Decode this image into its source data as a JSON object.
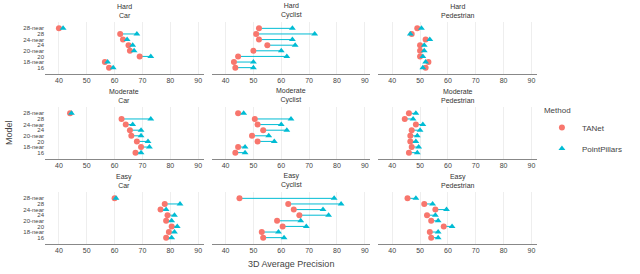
{
  "chart_data": [
    {
      "type": "dumbbell",
      "title": "Hard",
      "subtitle": "Car",
      "categories": [
        "28-near",
        "28",
        "24-near",
        "24",
        "20-near",
        "20",
        "18-near",
        "16"
      ],
      "series": [
        {
          "name": "TANet",
          "color": "#F8766D",
          "marker": "circle",
          "values": [
            40.0,
            62.0,
            63.0,
            65.0,
            65.5,
            69.0,
            56.5,
            58.0
          ]
        },
        {
          "name": "PointPillars",
          "color": "#00BCD4",
          "marker": "triangle-up",
          "values": [
            41.5,
            68.0,
            64.5,
            66.5,
            67.0,
            73.0,
            57.5,
            59.5
          ]
        }
      ],
      "xlim": [
        35,
        92
      ],
      "xticks": [
        40,
        50,
        60,
        70,
        80,
        90
      ],
      "grid": true,
      "legend": "right",
      "legend_title": "Method"
    },
    {
      "type": "dumbbell",
      "title": "Hard",
      "subtitle": "Cyclist",
      "categories": [
        "28-near",
        "28",
        "24-near",
        "24",
        "20-near",
        "20",
        "18-near",
        "16"
      ],
      "series": [
        {
          "name": "TANet",
          "color": "#F8766D",
          "marker": "circle",
          "values": [
            52.0,
            51.0,
            52.0,
            55.0,
            50.0,
            44.5,
            43.0,
            43.5
          ]
        },
        {
          "name": "PointPillars",
          "color": "#00BCD4",
          "marker": "triangle-up",
          "values": [
            64.0,
            72.0,
            64.0,
            65.0,
            60.0,
            62.0,
            50.0,
            50.0
          ]
        }
      ],
      "xlim": [
        35,
        92
      ],
      "xticks": [
        40,
        50,
        60,
        70,
        80,
        90
      ],
      "grid": true,
      "tick_labels": "x"
    },
    {
      "type": "dumbbell",
      "title": "Hard",
      "subtitle": "Pedestrian",
      "categories": [
        "28-near",
        "28",
        "24-near",
        "24",
        "20-near",
        "20",
        "18-near",
        "16"
      ],
      "series": [
        {
          "name": "TANet",
          "color": "#F8766D",
          "marker": "circle",
          "values": [
            49.0,
            47.0,
            52.0,
            50.0,
            50.0,
            50.0,
            53.0,
            52.0
          ]
        },
        {
          "name": "PointPillars",
          "color": "#00BCD4",
          "marker": "triangle-up",
          "values": [
            50.5,
            46.5,
            53.5,
            51.5,
            51.5,
            51.0,
            52.0,
            51.0
          ]
        }
      ],
      "xlim": [
        35,
        92
      ],
      "xticks": [
        40,
        50,
        60,
        70,
        80,
        90
      ],
      "grid": true,
      "tick_labels": "x"
    },
    {
      "type": "dumbbell",
      "title": "Moderate",
      "subtitle": "Car",
      "ylabel": "Model",
      "categories": [
        "28-near",
        "28",
        "24-near",
        "24",
        "20-near",
        "20",
        "18-near",
        "16"
      ],
      "series": [
        {
          "name": "TANet",
          "color": "#F8766D",
          "marker": "circle",
          "values": [
            44.0,
            62.5,
            64.0,
            65.5,
            66.0,
            68.0,
            69.5,
            67.5
          ]
        },
        {
          "name": "PointPillars",
          "color": "#00BCD4",
          "marker": "triangle-up",
          "values": [
            44.5,
            73.0,
            66.5,
            69.5,
            69.5,
            72.0,
            72.5,
            69.5
          ]
        }
      ],
      "xlim": [
        35,
        92
      ],
      "xticks": [
        40,
        50,
        60,
        70,
        80,
        90
      ],
      "grid": true
    },
    {
      "type": "dumbbell",
      "title": "Moderate",
      "subtitle": "Cyclist",
      "categories": [
        "28-near",
        "28",
        "24-near",
        "24",
        "20-near",
        "20",
        "18-near",
        "16"
      ],
      "series": [
        {
          "name": "TANet",
          "color": "#F8766D",
          "marker": "circle",
          "values": [
            44.5,
            50.5,
            51.5,
            53.5,
            49.5,
            51.5,
            44.5,
            43.5
          ]
        },
        {
          "name": "PointPillars",
          "color": "#00BCD4",
          "marker": "triangle-up",
          "values": [
            46.5,
            63.5,
            60.0,
            62.0,
            55.5,
            57.5,
            47.0,
            47.0
          ]
        }
      ],
      "xlim": [
        35,
        92
      ],
      "xticks": [
        40,
        50,
        60,
        70,
        80,
        90
      ],
      "grid": true,
      "tick_labels": "x"
    },
    {
      "type": "dumbbell",
      "title": "Moderate",
      "subtitle": "Pedestrian",
      "categories": [
        "28-near",
        "28",
        "24-near",
        "24",
        "20-near",
        "20",
        "18-near",
        "16"
      ],
      "series": [
        {
          "name": "TANet",
          "color": "#F8766D",
          "marker": "circle",
          "values": [
            46.0,
            44.5,
            48.5,
            47.0,
            46.5,
            46.5,
            47.0,
            46.0
          ]
        },
        {
          "name": "PointPillars",
          "color": "#00BCD4",
          "marker": "triangle-up",
          "values": [
            48.5,
            47.5,
            51.0,
            50.0,
            49.0,
            48.5,
            49.5,
            49.0
          ]
        }
      ],
      "xlim": [
        35,
        92
      ],
      "xticks": [
        40,
        50,
        60,
        70,
        80,
        90
      ],
      "grid": true,
      "tick_labels": "x"
    },
    {
      "type": "dumbbell",
      "title": "Easy",
      "subtitle": "Car",
      "categories": [
        "28-near",
        "28",
        "24-near",
        "24",
        "20-near",
        "20",
        "18-near",
        "16"
      ],
      "series": [
        {
          "name": "TANet",
          "color": "#F8766D",
          "marker": "circle",
          "values": [
            60.0,
            78.0,
            76.5,
            79.0,
            78.5,
            80.5,
            79.5,
            78.5
          ]
        },
        {
          "name": "PointPillars",
          "color": "#00BCD4",
          "marker": "triangle-up",
          "values": [
            60.5,
            83.5,
            78.5,
            81.5,
            80.5,
            82.5,
            81.5,
            80.5
          ]
        }
      ],
      "xlim": [
        35,
        92
      ],
      "xticks": [
        40,
        50,
        60,
        70,
        80,
        90
      ],
      "grid": true
    },
    {
      "type": "dumbbell",
      "title": "Easy",
      "subtitle": "Cyclist",
      "xlabel": "3D Average Precision",
      "categories": [
        "28-near",
        "28",
        "24-near",
        "24",
        "20-near",
        "20",
        "18-near",
        "16"
      ],
      "series": [
        {
          "name": "TANet",
          "color": "#F8766D",
          "marker": "circle",
          "values": [
            45.0,
            62.5,
            64.5,
            66.5,
            58.5,
            60.5,
            53.0,
            53.5
          ]
        },
        {
          "name": "PointPillars",
          "color": "#00BCD4",
          "marker": "triangle-up",
          "values": [
            79.0,
            81.5,
            75.0,
            77.0,
            67.0,
            69.0,
            59.0,
            61.0
          ]
        }
      ],
      "xlim": [
        35,
        92
      ],
      "xticks": [
        40,
        50,
        60,
        70,
        80,
        90
      ],
      "grid": true,
      "tick_labels": "x"
    },
    {
      "type": "dumbbell",
      "title": "Easy",
      "subtitle": "Pedestrian",
      "categories": [
        "28-near",
        "28",
        "24-near",
        "24",
        "20-near",
        "20",
        "18-near",
        "16"
      ],
      "series": [
        {
          "name": "TANet",
          "color": "#F8766D",
          "marker": "circle",
          "values": [
            45.5,
            51.5,
            55.5,
            52.5,
            54.0,
            58.5,
            53.5,
            54.0
          ]
        },
        {
          "name": "PointPillars",
          "color": "#00BCD4",
          "marker": "triangle-up",
          "values": [
            48.5,
            54.5,
            59.5,
            55.5,
            56.5,
            61.5,
            56.5,
            56.5
          ]
        }
      ],
      "xlim": [
        35,
        92
      ],
      "xticks": [
        40,
        50,
        60,
        70,
        80,
        90
      ],
      "grid": true,
      "tick_labels": "x"
    }
  ]
}
